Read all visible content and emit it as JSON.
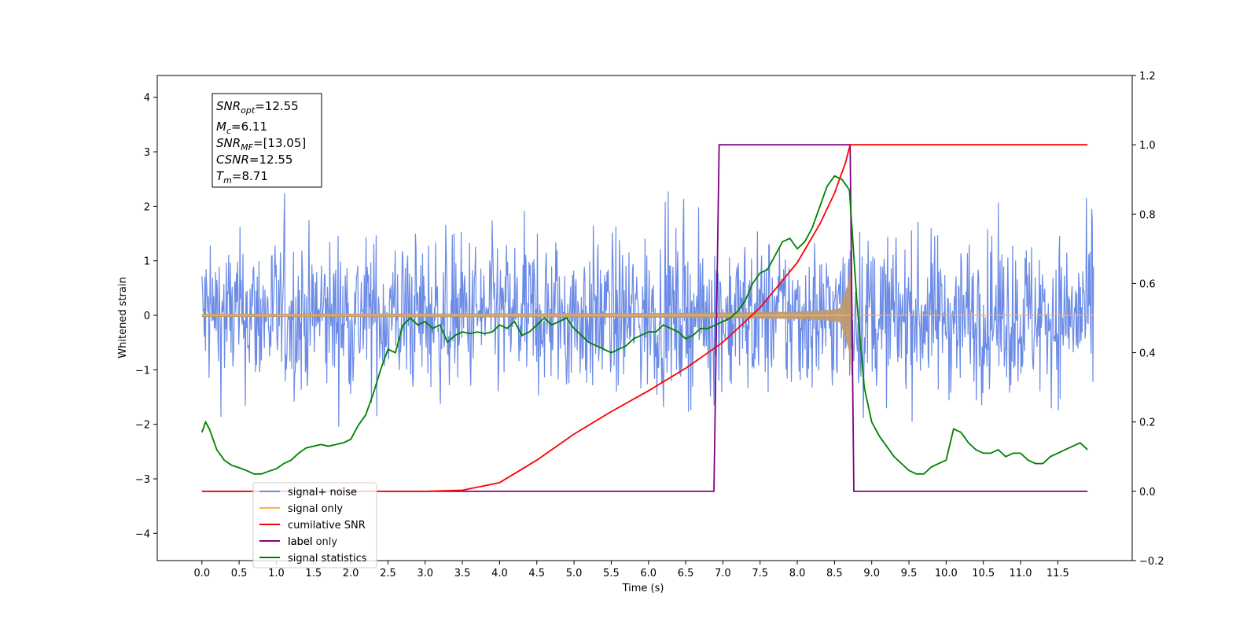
{
  "chart_data": {
    "type": "line",
    "xlabel": "Time (s)",
    "ylabel": "Whitened strain",
    "xlim": [
      -0.6,
      12.5
    ],
    "ylim": [
      -4.5,
      4.4
    ],
    "y2lim": [
      -0.2,
      1.2
    ],
    "x_ticks": [
      "0.0",
      "0.5",
      "1.0",
      "1.5",
      "2.0",
      "2.5",
      "3.0",
      "3.5",
      "4.0",
      "4.5",
      "5.0",
      "5.5",
      "6.0",
      "6.5",
      "7.0",
      "7.5",
      "8.0",
      "8.5",
      "9.0",
      "9.5",
      "10.0",
      "10.5",
      "11.0",
      "11.5"
    ],
    "y_ticks": [
      "4",
      "3",
      "2",
      "1",
      "0",
      "−1",
      "−2",
      "−3",
      "−4"
    ],
    "y2_ticks": [
      "1.2",
      "1.0",
      "0.8",
      "0.6",
      "0.4",
      "0.2",
      "0.0",
      "−0.2"
    ],
    "legend_position": "lower-left",
    "grid": false,
    "colors": {
      "noise": "#6b8be6",
      "signal": "#ffb347",
      "envelope": "#bf9a70",
      "snr": "#ff0000",
      "label": "#800080",
      "stats": "#008000"
    },
    "legend": [
      {
        "name": "signal+ noise",
        "color": "#6b8be6"
      },
      {
        "name": "signal only",
        "color": "#ffb347"
      },
      {
        "name": "cumilative SNR",
        "color": "#ff0000"
      },
      {
        "name": "label",
        "color": "#800080"
      },
      {
        "name": "signal statistics",
        "color": "#008000"
      }
    ],
    "hidden_legend_text": "label only",
    "info": {
      "snr_opt": {
        "sym": "SNR",
        "sub": "opt",
        "value": "=12.55"
      },
      "mc": {
        "sym": "M",
        "sub": "c",
        "value": "=6.11"
      },
      "snr_mf": {
        "sym": "SNR",
        "sub": "MF",
        "value": "=[13.05]"
      },
      "csnr": {
        "sym": "CSNR",
        "sub": "",
        "value": "=12.55"
      },
      "tm": {
        "sym": "T",
        "sub": "m",
        "value": "=8.71"
      }
    },
    "series": [
      {
        "name": "label",
        "axis": "right",
        "x": [
          0.0,
          6.88,
          6.95,
          8.71,
          8.76,
          11.9
        ],
        "y": [
          0.0,
          0.0,
          1.0,
          1.0,
          0.0,
          0.0
        ]
      },
      {
        "name": "cumilative SNR",
        "axis": "right",
        "x": [
          0.0,
          3.0,
          3.5,
          4.0,
          4.5,
          5.0,
          5.5,
          6.0,
          6.5,
          7.0,
          7.5,
          8.0,
          8.3,
          8.5,
          8.65,
          8.71,
          11.9
        ],
        "y": [
          0.0,
          0.0,
          0.003,
          0.025,
          0.09,
          0.165,
          0.23,
          0.29,
          0.355,
          0.43,
          0.53,
          0.66,
          0.77,
          0.86,
          0.95,
          1.0,
          1.0
        ]
      },
      {
        "name": "signal statistics",
        "axis": "right",
        "x": [
          0.0,
          0.05,
          0.1,
          0.2,
          0.3,
          0.4,
          0.5,
          0.6,
          0.7,
          0.8,
          0.9,
          1.0,
          1.1,
          1.2,
          1.3,
          1.4,
          1.5,
          1.6,
          1.7,
          1.8,
          1.9,
          2.0,
          2.1,
          2.2,
          2.3,
          2.4,
          2.5,
          2.6,
          2.7,
          2.8,
          2.9,
          3.0,
          3.1,
          3.2,
          3.3,
          3.4,
          3.5,
          3.6,
          3.7,
          3.8,
          3.9,
          4.0,
          4.1,
          4.2,
          4.3,
          4.4,
          4.5,
          4.6,
          4.7,
          4.8,
          4.9,
          5.0,
          5.1,
          5.2,
          5.3,
          5.4,
          5.5,
          5.6,
          5.7,
          5.8,
          5.9,
          6.0,
          6.1,
          6.2,
          6.3,
          6.4,
          6.5,
          6.6,
          6.7,
          6.8,
          6.9,
          7.0,
          7.1,
          7.2,
          7.3,
          7.4,
          7.5,
          7.6,
          7.7,
          7.8,
          7.9,
          8.0,
          8.1,
          8.2,
          8.3,
          8.4,
          8.5,
          8.6,
          8.7,
          8.8,
          8.9,
          9.0,
          9.1,
          9.2,
          9.3,
          9.4,
          9.5,
          9.6,
          9.7,
          9.8,
          9.9,
          10.0,
          10.1,
          10.2,
          10.3,
          10.4,
          10.5,
          10.6,
          10.7,
          10.8,
          10.9,
          11.0,
          11.1,
          11.2,
          11.3,
          11.4,
          11.5,
          11.6,
          11.7,
          11.8,
          11.9
        ],
        "y": [
          0.17,
          0.2,
          0.18,
          0.12,
          0.09,
          0.075,
          0.068,
          0.06,
          0.05,
          0.05,
          0.058,
          0.065,
          0.08,
          0.09,
          0.11,
          0.125,
          0.13,
          0.135,
          0.13,
          0.135,
          0.14,
          0.15,
          0.19,
          0.22,
          0.28,
          0.35,
          0.41,
          0.4,
          0.48,
          0.5,
          0.48,
          0.49,
          0.47,
          0.48,
          0.43,
          0.45,
          0.46,
          0.455,
          0.46,
          0.455,
          0.46,
          0.48,
          0.47,
          0.49,
          0.45,
          0.46,
          0.48,
          0.5,
          0.48,
          0.49,
          0.5,
          0.47,
          0.45,
          0.43,
          0.42,
          0.41,
          0.4,
          0.41,
          0.42,
          0.44,
          0.45,
          0.46,
          0.46,
          0.48,
          0.47,
          0.46,
          0.44,
          0.45,
          0.47,
          0.47,
          0.48,
          0.49,
          0.5,
          0.52,
          0.55,
          0.6,
          0.63,
          0.64,
          0.68,
          0.72,
          0.73,
          0.7,
          0.72,
          0.76,
          0.82,
          0.88,
          0.91,
          0.9,
          0.87,
          0.55,
          0.3,
          0.2,
          0.16,
          0.13,
          0.1,
          0.08,
          0.06,
          0.05,
          0.05,
          0.07,
          0.08,
          0.09,
          0.18,
          0.17,
          0.14,
          0.12,
          0.11,
          0.11,
          0.12,
          0.1,
          0.11,
          0.11,
          0.09,
          0.08,
          0.08,
          0.1,
          0.11,
          0.12,
          0.13,
          0.14,
          0.12
        ]
      }
    ]
  }
}
